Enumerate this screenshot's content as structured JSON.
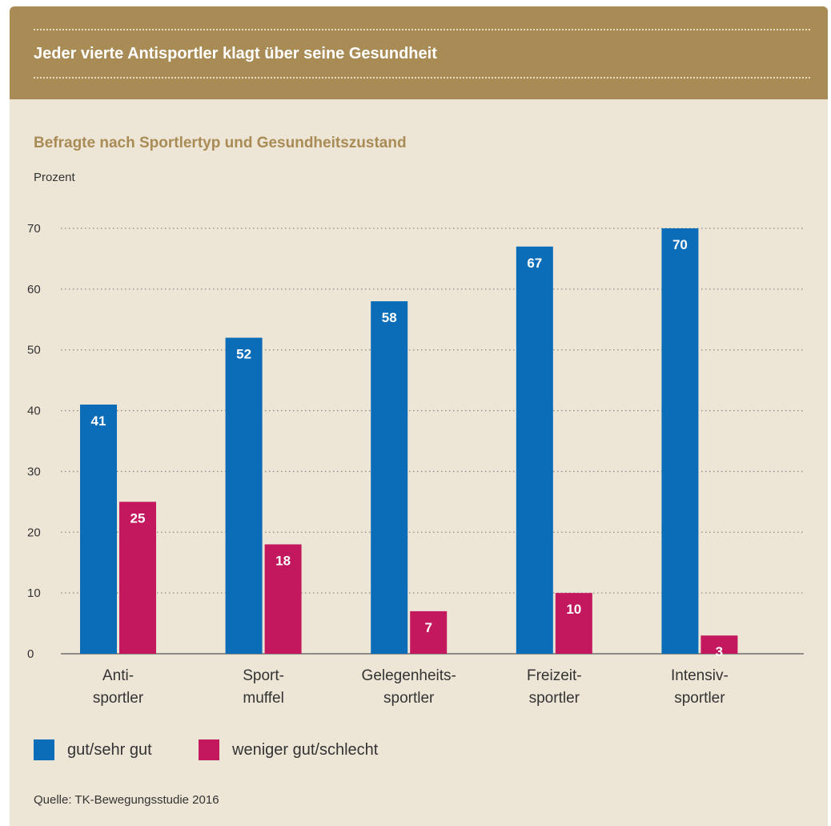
{
  "header": {
    "title": "Jeder vierte Antisportler klagt über seine Gesundheit"
  },
  "chart_data": {
    "type": "bar",
    "title": "Befragte nach Sportlertyp und Gesundheitszustand",
    "ylabel": "Prozent",
    "xlabel": "",
    "ylim": [
      0,
      70
    ],
    "yticks": [
      0,
      10,
      20,
      30,
      40,
      50,
      60,
      70
    ],
    "grid": true,
    "legend_position": "bottom-left",
    "categories": [
      [
        "Anti-",
        "sportler"
      ],
      [
        "Sport-",
        "muffel"
      ],
      [
        "Gelegenheits-",
        "sportler"
      ],
      [
        "Freizeit-",
        "sportler"
      ],
      [
        "Intensiv-",
        "sportler"
      ]
    ],
    "series": [
      {
        "name": "gut/sehr gut",
        "color": "#0b6cb8",
        "values": [
          41,
          52,
          58,
          67,
          70
        ]
      },
      {
        "name": "weniger gut/schlecht",
        "color": "#c3175e",
        "values": [
          25,
          18,
          7,
          10,
          3
        ]
      }
    ]
  },
  "source": "Quelle: TK-Bewegungsstudie 2016"
}
